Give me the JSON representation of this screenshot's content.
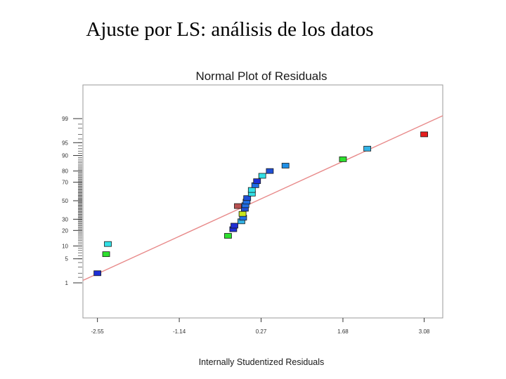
{
  "slide": {
    "title": "Ajuste por LS: análisis de los datos"
  },
  "chart_data": {
    "type": "scatter",
    "title": "Normal Plot of Residuals",
    "xlabel": "Internally Studentized Residuals",
    "ylabel": "",
    "xlim": [
      -2.8,
      3.4
    ],
    "x_ticks": [
      -2.55,
      -1.14,
      0.27,
      1.68,
      3.08
    ],
    "x_tick_labels": [
      "-2.55",
      "-1.14",
      "0.27",
      "1.68",
      "3.08"
    ],
    "y_scale": "normal-probability",
    "y_ticks": [
      1,
      5,
      10,
      20,
      30,
      50,
      70,
      80,
      90,
      95,
      99
    ],
    "y_tick_labels": [
      "1",
      "5",
      "10",
      "20",
      "30",
      "50",
      "70",
      "80",
      "90",
      "95",
      "99"
    ],
    "grid": false,
    "fit_line": {
      "from": [
        -2.8,
        1.2
      ],
      "to": [
        3.4,
        99.2
      ],
      "color": "#e88a8a"
    },
    "points": [
      {
        "x": -2.55,
        "y": 2,
        "color": "#1f2fd6"
      },
      {
        "x": -2.4,
        "y": 6.5,
        "color": "#2ee02e"
      },
      {
        "x": -2.37,
        "y": 11,
        "color": "#33e0e6"
      },
      {
        "x": -0.3,
        "y": 16,
        "color": "#2ee02e"
      },
      {
        "x": -0.21,
        "y": 21,
        "color": "#1f2fd6"
      },
      {
        "x": -0.19,
        "y": 24,
        "color": "#1f2fd6"
      },
      {
        "x": -0.07,
        "y": 28,
        "color": "#33b3e6"
      },
      {
        "x": -0.04,
        "y": 31.5,
        "color": "#1f6fe6"
      },
      {
        "x": -0.05,
        "y": 35.5,
        "color": "#c8e61e"
      },
      {
        "x": -0.13,
        "y": 44,
        "color": "#b85050"
      },
      {
        "x": -0.01,
        "y": 41,
        "color": "#1f4fd6"
      },
      {
        "x": 0.0,
        "y": 45,
        "color": "#1f6fe6"
      },
      {
        "x": 0.02,
        "y": 49,
        "color": "#1f6fe6"
      },
      {
        "x": 0.03,
        "y": 53,
        "color": "#1f4fd6"
      },
      {
        "x": 0.11,
        "y": 58,
        "color": "#33e0e6"
      },
      {
        "x": 0.11,
        "y": 62,
        "color": "#33e0e6"
      },
      {
        "x": 0.17,
        "y": 67,
        "color": "#1f6fe6"
      },
      {
        "x": 0.2,
        "y": 71,
        "color": "#1f2fd6"
      },
      {
        "x": 0.29,
        "y": 76,
        "color": "#33e0e6"
      },
      {
        "x": 0.42,
        "y": 80,
        "color": "#1f4fd6"
      },
      {
        "x": 0.69,
        "y": 84,
        "color": "#1f8fe6"
      },
      {
        "x": 1.68,
        "y": 88,
        "color": "#2ee02e"
      },
      {
        "x": 2.1,
        "y": 93,
        "color": "#33b3e6"
      },
      {
        "x": 3.08,
        "y": 97,
        "color": "#e61e1e"
      }
    ]
  }
}
